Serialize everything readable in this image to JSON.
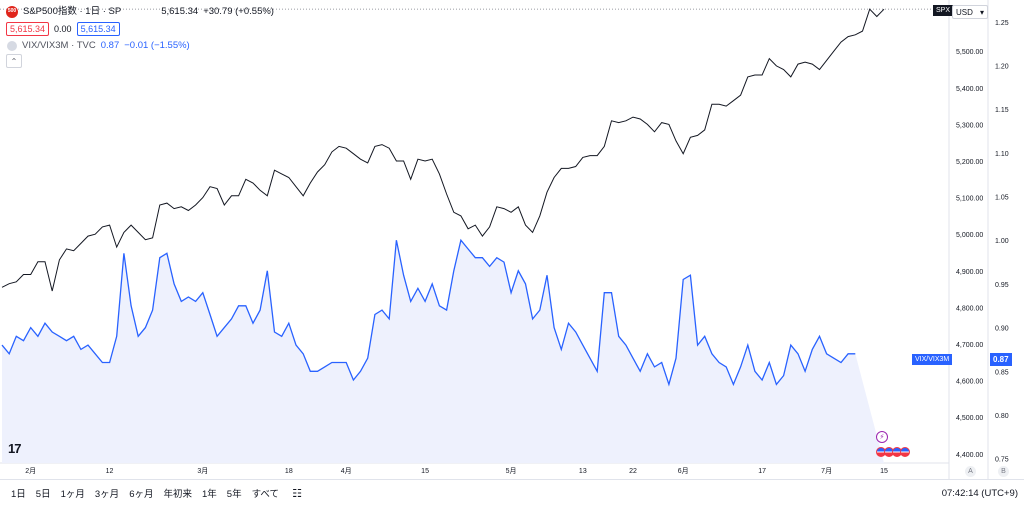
{
  "legend": {
    "main": {
      "logo_text": "500",
      "symbol": "S&P500指数 · 1日 · SP",
      "price": "5,615.34",
      "change": "+30.79 (+0.55%)",
      "bid": "5,615.34",
      "spread": "0.00",
      "ask": "5,615.34"
    },
    "compare": {
      "symbol": "VIX/VIX3M · TVC",
      "price": "0.87",
      "change": "−0.01 (−1.55%)"
    },
    "collapse_icon": "chevron-up-icon"
  },
  "price_scale": {
    "currency": "USD",
    "left_labels": [
      "5,500.00",
      "5,400.00",
      "5,300.00",
      "5,200.00",
      "5,100.00",
      "5,000.00",
      "4,900.00",
      "4,800.00",
      "4,700.00",
      "4,600.00",
      "4,500.00",
      "4,400.00"
    ],
    "right_labels": [
      "1.25",
      "1.20",
      "1.15",
      "1.10",
      "1.05",
      "1.00",
      "0.95",
      "0.90",
      "0.85",
      "0.80",
      "0.75"
    ],
    "spx_tag": "SPX",
    "vix_tag": "VIX/VIX3M",
    "vix_price": "0.87",
    "axis_a": "A",
    "axis_b": "B"
  },
  "time_axis": [
    "2月",
    "12",
    "3月",
    "18",
    "4月",
    "15",
    "5月",
    "13",
    "22",
    "6月",
    "17",
    "7月",
    "15"
  ],
  "bottom": {
    "ranges": [
      "1日",
      "5日",
      "1ヶ月",
      "3ヶ月",
      "6ヶ月",
      "年初来",
      "1年",
      "5年",
      "すべて"
    ],
    "clock": "07:42:14 (UTC+9)"
  },
  "colors": {
    "spx": "#131722",
    "vix": "#2962ff",
    "vix_fill": "#eef1fd"
  },
  "chart_data": {
    "type": "line",
    "series": [
      {
        "name": "S&P500指数",
        "values": [
          4855,
          4865,
          4870,
          4890,
          4890,
          4925,
          4925,
          4845,
          4930,
          4960,
          4955,
          4975,
          4995,
          5000,
          5020,
          5025,
          4965,
          5005,
          5025,
          5005,
          4985,
          4990,
          5080,
          5085,
          5070,
          5075,
          5065,
          5080,
          5100,
          5130,
          5125,
          5080,
          5105,
          5105,
          5150,
          5140,
          5120,
          5105,
          5175,
          5165,
          5155,
          5130,
          5105,
          5140,
          5170,
          5190,
          5225,
          5240,
          5235,
          5220,
          5205,
          5195,
          5240,
          5245,
          5235,
          5200,
          5200,
          5150,
          5205,
          5200,
          5205,
          5165,
          5110,
          5060,
          5050,
          5015,
          5025,
          4995,
          5020,
          5075,
          5070,
          5060,
          5075,
          5025,
          5005,
          5050,
          5115,
          5155,
          5180,
          5180,
          5185,
          5210,
          5215,
          5215,
          5240,
          5310,
          5305,
          5310,
          5320,
          5315,
          5300,
          5280,
          5305,
          5300,
          5255,
          5220,
          5265,
          5270,
          5285,
          5355,
          5355,
          5350,
          5365,
          5380,
          5430,
          5435,
          5435,
          5480,
          5460,
          5450,
          5430,
          5465,
          5470,
          5465,
          5450,
          5475,
          5500,
          5525,
          5540,
          5545,
          5555,
          5615,
          5595,
          5615
        ]
      },
      {
        "name": "VIX/VIX3M",
        "values": [
          0.88,
          0.87,
          0.89,
          0.885,
          0.9,
          0.89,
          0.905,
          0.895,
          0.89,
          0.885,
          0.89,
          0.875,
          0.88,
          0.87,
          0.86,
          0.86,
          0.89,
          0.985,
          0.925,
          0.89,
          0.9,
          0.92,
          0.98,
          0.985,
          0.95,
          0.93,
          0.935,
          0.93,
          0.94,
          0.915,
          0.89,
          0.9,
          0.91,
          0.925,
          0.925,
          0.905,
          0.92,
          0.965,
          0.895,
          0.89,
          0.905,
          0.88,
          0.87,
          0.85,
          0.85,
          0.855,
          0.86,
          0.86,
          0.86,
          0.84,
          0.85,
          0.865,
          0.915,
          0.92,
          0.91,
          1.0,
          0.96,
          0.93,
          0.945,
          0.93,
          0.95,
          0.925,
          0.92,
          0.965,
          1.0,
          0.99,
          0.98,
          0.98,
          0.97,
          0.98,
          0.975,
          0.94,
          0.965,
          0.95,
          0.91,
          0.92,
          0.96,
          0.9,
          0.875,
          0.905,
          0.895,
          0.88,
          0.865,
          0.85,
          0.94,
          0.94,
          0.89,
          0.88,
          0.865,
          0.85,
          0.87,
          0.855,
          0.86,
          0.835,
          0.865,
          0.955,
          0.96,
          0.88,
          0.89,
          0.87,
          0.86,
          0.855,
          0.835,
          0.855,
          0.88,
          0.85,
          0.84,
          0.86,
          0.835,
          0.845,
          0.88,
          0.87,
          0.85,
          0.875,
          0.89,
          0.87,
          0.865,
          0.86,
          0.87,
          0.87
        ],
        "axis": "right"
      }
    ],
    "left_ylim": [
      4375,
      5640
    ],
    "right_ylim": [
      0.745,
      1.275
    ],
    "grid": false,
    "legend": "top-left"
  }
}
